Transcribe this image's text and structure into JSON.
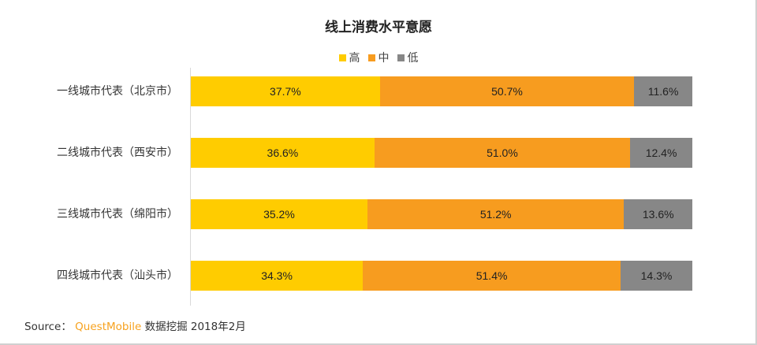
{
  "chart_data": {
    "type": "bar",
    "orientation": "horizontal",
    "stacked": true,
    "title": "线上消费水平意愿",
    "xlabel": "",
    "ylabel": "",
    "categories": [
      "一线城市代表（北京市）",
      "二线城市代表（西安市）",
      "三线城市代表（绵阳市）",
      "四线城市代表（汕头市）"
    ],
    "series": [
      {
        "name": "高",
        "color": "#ffcc00",
        "values": [
          37.7,
          36.6,
          35.2,
          34.3
        ],
        "labels": [
          "37.7%",
          "36.6%",
          "35.2%",
          "34.3%"
        ]
      },
      {
        "name": "中",
        "color": "#f79c1f",
        "values": [
          50.7,
          51.0,
          51.2,
          51.4
        ],
        "labels": [
          "50.7%",
          "51.0%",
          "51.2%",
          "51.4%"
        ]
      },
      {
        "name": "低",
        "color": "#878787",
        "values": [
          11.6,
          12.4,
          13.6,
          14.3
        ],
        "labels": [
          "11.6%",
          "12.4%",
          "13.6%",
          "14.3%"
        ]
      }
    ],
    "xlim": [
      0,
      100
    ],
    "grid": false,
    "legend_position": "top"
  },
  "source": {
    "prefix": "Source：",
    "brand": "QuestMobile",
    "suffix": "数据挖掘 2018年2月"
  }
}
